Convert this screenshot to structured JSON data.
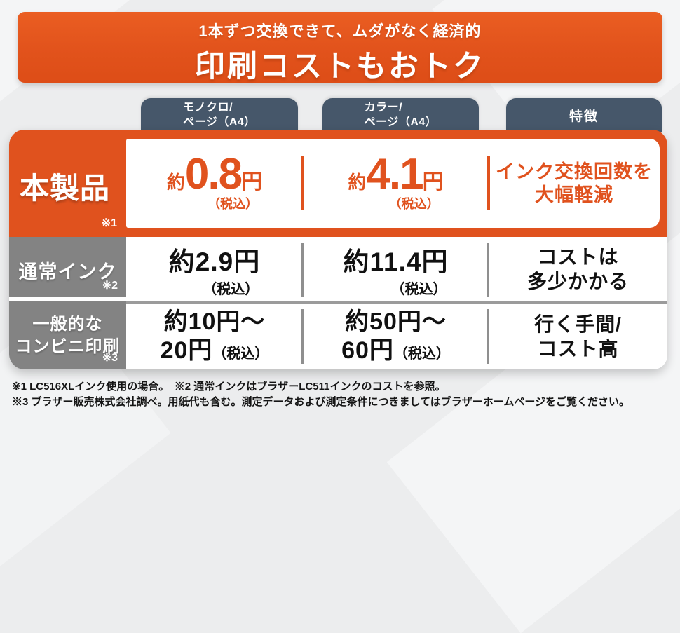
{
  "colors": {
    "orange": "#E0521E",
    "slate": "#46576A",
    "gray": "#838383",
    "background": "#ECEDEE"
  },
  "header": {
    "subtitle": "1本ずつ交換できて、ムダがなく経済的",
    "title": "印刷コストもおトク"
  },
  "column_headers": [
    {
      "line1": "モノクロ/",
      "line2": "ページ（A4）"
    },
    {
      "line1": "カラー/",
      "line2": "ページ（A4）"
    },
    {
      "line1": "特徴"
    }
  ],
  "rows": [
    {
      "label": "本製品",
      "note": "※1",
      "mono": {
        "approx": "約",
        "value": "0.8",
        "unit": "円",
        "tax": "（税込）"
      },
      "color": {
        "approx": "約",
        "value": "4.1",
        "unit": "円",
        "tax": "（税込）"
      },
      "feature": {
        "line1": "インク交換回数を",
        "line2": "大幅軽減"
      }
    },
    {
      "label": "通常インク",
      "note": "※2",
      "mono": {
        "value": "約2.9円",
        "tax": "（税込）"
      },
      "color": {
        "value": "約11.4円",
        "tax": "（税込）"
      },
      "feature": {
        "line1": "コストは",
        "line2": "多少かかる"
      }
    },
    {
      "label": {
        "line1": "一般的な",
        "line2": "コンビニ印刷"
      },
      "note": "※3",
      "mono": {
        "line1": "約10円～",
        "line2": "20円",
        "tax": "（税込）"
      },
      "color": {
        "line1": "約50円～",
        "line2": "60円",
        "tax": "（税込）"
      },
      "feature": {
        "line1": "行く手間/",
        "line2": "コスト高"
      }
    }
  ],
  "footnotes": {
    "line1": "※1 LC516XLインク使用の場合。　※2 通常インクはブラザーLC511インクのコストを参照。",
    "line2": "※3 ブラザー販売株式会社調べ。用紙代も含む。測定データおよび測定条件につきましてはブラザーホームページをご覧ください。"
  },
  "chart_data": {
    "type": "table",
    "title": "印刷コストもおトク",
    "subtitle": "1本ずつ交換できて、ムダがなく経済的",
    "columns": [
      "モノクロ/ページ（A4）",
      "カラー/ページ（A4）",
      "特徴"
    ],
    "rows": [
      {
        "label": "本製品 ※1",
        "monochrome_per_page": "約0.8円（税込）",
        "color_per_page": "約4.1円（税込）",
        "feature": "インク交換回数を大幅軽減"
      },
      {
        "label": "通常インク ※2",
        "monochrome_per_page": "約2.9円（税込）",
        "color_per_page": "約11.4円（税込）",
        "feature": "コストは多少かかる"
      },
      {
        "label": "一般的なコンビニ印刷 ※3",
        "monochrome_per_page": "約10円～20円（税込）",
        "color_per_page": "約50円～60円（税込）",
        "feature": "行く手間/コスト高"
      }
    ]
  }
}
